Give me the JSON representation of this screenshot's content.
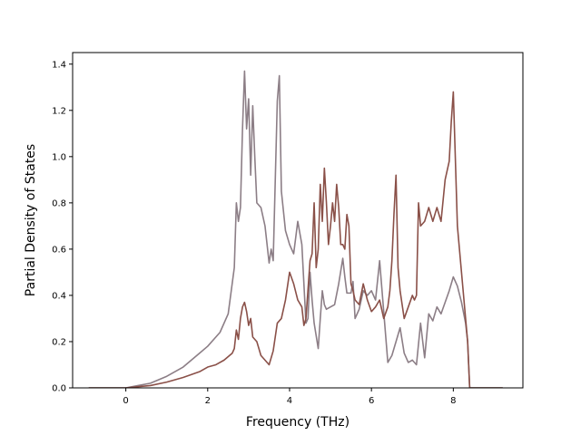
{
  "chart_data": {
    "type": "line",
    "title": "",
    "xlabel": "Frequency (THz)",
    "ylabel": "Partial Density of States",
    "xlim": [
      -1.3,
      9.7
    ],
    "ylim": [
      0.0,
      1.45
    ],
    "xticks": [
      0,
      2,
      4,
      6,
      8
    ],
    "xtick_labels": [
      "0",
      "2",
      "4",
      "6",
      "8"
    ],
    "yticks": [
      0.0,
      0.2,
      0.4,
      0.6,
      0.8,
      1.0,
      1.2,
      1.4
    ],
    "ytick_labels": [
      "0.0",
      "0.2",
      "0.4",
      "0.6",
      "0.8",
      "1.0",
      "1.2",
      "1.4"
    ],
    "grid": false,
    "legend": "none",
    "series": [
      {
        "color": "#8c7e86",
        "x": [
          -0.9,
          0.0,
          0.3,
          0.6,
          1.0,
          1.4,
          1.8,
          2.0,
          2.3,
          2.5,
          2.65,
          2.7,
          2.75,
          2.8,
          2.85,
          2.9,
          2.95,
          3.0,
          3.05,
          3.1,
          3.15,
          3.2,
          3.3,
          3.4,
          3.5,
          3.55,
          3.6,
          3.7,
          3.75,
          3.8,
          3.9,
          4.0,
          4.1,
          4.2,
          4.3,
          4.4,
          4.45,
          4.5,
          4.55,
          4.6,
          4.7,
          4.75,
          4.8,
          4.85,
          4.9,
          5.0,
          5.1,
          5.2,
          5.3,
          5.35,
          5.4,
          5.5,
          5.55,
          5.6,
          5.7,
          5.8,
          5.9,
          6.0,
          6.1,
          6.2,
          6.3,
          6.4,
          6.5,
          6.6,
          6.7,
          6.8,
          6.9,
          7.0,
          7.1,
          7.2,
          7.3,
          7.4,
          7.5,
          7.6,
          7.7,
          7.8,
          7.9,
          8.0,
          8.1,
          8.2,
          8.3,
          8.35,
          8.4,
          8.5,
          9.2
        ],
        "y": [
          0.0,
          0.0,
          0.01,
          0.02,
          0.05,
          0.09,
          0.15,
          0.18,
          0.24,
          0.32,
          0.52,
          0.8,
          0.72,
          0.78,
          1.12,
          1.37,
          1.12,
          1.25,
          0.92,
          1.22,
          1.0,
          0.8,
          0.78,
          0.7,
          0.54,
          0.6,
          0.55,
          1.24,
          1.35,
          0.85,
          0.68,
          0.62,
          0.58,
          0.72,
          0.62,
          0.28,
          0.3,
          0.5,
          0.38,
          0.28,
          0.17,
          0.3,
          0.42,
          0.36,
          0.34,
          0.35,
          0.36,
          0.45,
          0.56,
          0.48,
          0.41,
          0.41,
          0.46,
          0.3,
          0.34,
          0.42,
          0.4,
          0.42,
          0.38,
          0.55,
          0.33,
          0.11,
          0.14,
          0.2,
          0.26,
          0.15,
          0.11,
          0.12,
          0.1,
          0.28,
          0.13,
          0.32,
          0.29,
          0.35,
          0.32,
          0.37,
          0.42,
          0.48,
          0.44,
          0.37,
          0.28,
          0.2,
          0.0,
          0.0,
          0.0
        ]
      },
      {
        "color": "#8a5048",
        "x": [
          -0.9,
          0.0,
          0.3,
          0.6,
          1.0,
          1.4,
          1.8,
          2.0,
          2.2,
          2.4,
          2.6,
          2.65,
          2.7,
          2.75,
          2.8,
          2.85,
          2.9,
          2.95,
          3.0,
          3.05,
          3.1,
          3.2,
          3.3,
          3.4,
          3.5,
          3.6,
          3.7,
          3.8,
          3.9,
          4.0,
          4.1,
          4.2,
          4.3,
          4.35,
          4.4,
          4.5,
          4.55,
          4.6,
          4.65,
          4.7,
          4.75,
          4.8,
          4.85,
          4.9,
          4.95,
          5.0,
          5.05,
          5.1,
          5.15,
          5.2,
          5.25,
          5.3,
          5.35,
          5.4,
          5.45,
          5.5,
          5.55,
          5.6,
          5.7,
          5.8,
          5.9,
          6.0,
          6.1,
          6.2,
          6.3,
          6.4,
          6.45,
          6.5,
          6.55,
          6.6,
          6.65,
          6.7,
          6.8,
          6.9,
          7.0,
          7.05,
          7.1,
          7.15,
          7.2,
          7.3,
          7.4,
          7.5,
          7.6,
          7.7,
          7.8,
          7.9,
          7.95,
          8.0,
          8.1,
          8.2,
          8.3,
          8.35,
          8.4,
          8.5,
          9.2
        ],
        "y": [
          0.0,
          0.0,
          0.005,
          0.01,
          0.025,
          0.045,
          0.07,
          0.09,
          0.1,
          0.12,
          0.15,
          0.17,
          0.25,
          0.21,
          0.3,
          0.35,
          0.37,
          0.33,
          0.27,
          0.3,
          0.22,
          0.2,
          0.14,
          0.12,
          0.1,
          0.16,
          0.28,
          0.3,
          0.38,
          0.5,
          0.45,
          0.38,
          0.35,
          0.27,
          0.3,
          0.55,
          0.58,
          0.8,
          0.52,
          0.6,
          0.88,
          0.72,
          0.95,
          0.8,
          0.62,
          0.7,
          0.8,
          0.72,
          0.88,
          0.78,
          0.62,
          0.62,
          0.6,
          0.75,
          0.7,
          0.45,
          0.42,
          0.38,
          0.36,
          0.45,
          0.38,
          0.33,
          0.35,
          0.38,
          0.3,
          0.35,
          0.42,
          0.55,
          0.75,
          0.92,
          0.52,
          0.42,
          0.3,
          0.35,
          0.4,
          0.38,
          0.4,
          0.8,
          0.7,
          0.72,
          0.78,
          0.72,
          0.78,
          0.72,
          0.9,
          0.98,
          1.15,
          1.28,
          0.7,
          0.5,
          0.3,
          0.2,
          0.0,
          0.0,
          0.0
        ]
      }
    ]
  }
}
